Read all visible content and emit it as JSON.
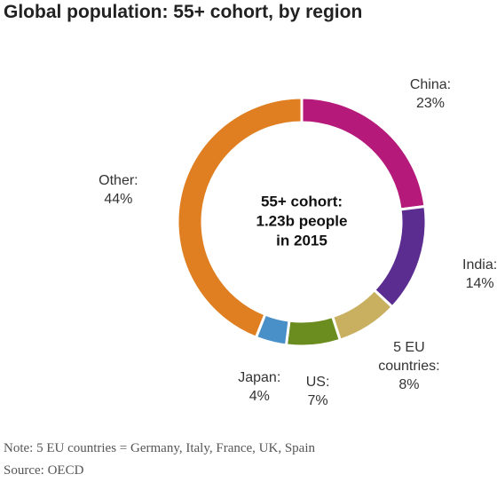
{
  "chart_data": {
    "type": "donut",
    "title": "Global population: 55+ cohort, by region",
    "center_label": [
      "55+ cohort:",
      "1.23b people",
      "in 2015"
    ],
    "categories": [
      "China:",
      "India:",
      "5 EU countries:",
      "US:",
      "Japan:",
      "Other:"
    ],
    "values": [
      23,
      14,
      8,
      7,
      4,
      44
    ],
    "value_labels": [
      "23%",
      "14%",
      "8%",
      "7%",
      "4%",
      "44%"
    ],
    "colors": [
      "#b5197a",
      "#5b2d91",
      "#c9b060",
      "#6b8c1e",
      "#4a90c8",
      "#e07f22"
    ],
    "note": "Note: 5 EU countries = Germany, Italy, France, UK, Spain",
    "source": "Source: OECD"
  }
}
